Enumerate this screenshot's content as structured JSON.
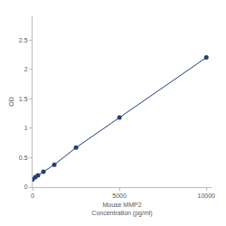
{
  "chart_data": {
    "type": "line",
    "xlabel": "Mouse MMP2\nConcentration (pg/ml)",
    "ylabel": "OD",
    "x": [
      0,
      156,
      312,
      625,
      1250,
      2500,
      5000,
      10000
    ],
    "values": [
      0.13,
      0.17,
      0.2,
      0.26,
      0.38,
      0.67,
      1.18,
      2.2
    ],
    "color": "#1f3f7a",
    "marker": "circle",
    "line_style": "solid",
    "xlim": [
      0,
      10300
    ],
    "ylim": [
      0,
      2.9
    ],
    "xticks": [
      0,
      5000,
      10000
    ],
    "yticks": [
      0,
      0.5,
      1,
      1.5,
      2,
      2.5
    ],
    "grid": false
  }
}
